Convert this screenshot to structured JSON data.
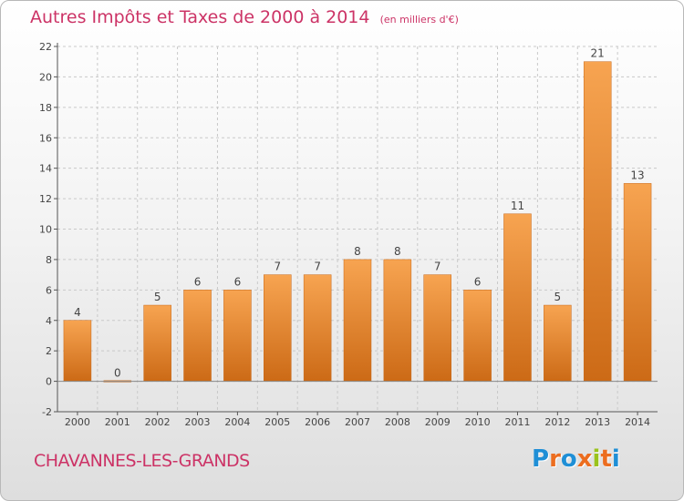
{
  "header": {
    "title": "Autres Impôts et Taxes de 2000 à 2014",
    "unit": "(en milliers d'€)"
  },
  "footer": {
    "commune": "CHAVANNES-LES-GRANDS",
    "logo_text": "Proxiti",
    "logo_colors": [
      "#1f8fd6",
      "#ec6d1f",
      "#1f8fd6",
      "#ec6d1f",
      "#9ac31c",
      "#ec6d1f",
      "#1f8fd6"
    ]
  },
  "colors": {
    "title": "#cc3366",
    "bar_light": "#f7a451",
    "bar_dark": "#cc6a16",
    "axis": "#555555",
    "grid": "#c9c9c9"
  },
  "chart_data": {
    "type": "bar",
    "title": "Autres Impôts et Taxes de 2000 à 2014",
    "subtitle": "(en milliers d'€)",
    "xlabel": "",
    "ylabel": "",
    "categories": [
      "2000",
      "2001",
      "2002",
      "2003",
      "2004",
      "2005",
      "2006",
      "2007",
      "2008",
      "2009",
      "2010",
      "2011",
      "2012",
      "2013",
      "2014"
    ],
    "values": [
      4,
      0,
      5,
      6,
      6,
      7,
      7,
      8,
      8,
      7,
      6,
      11,
      5,
      21,
      13
    ],
    "ylim": [
      -2,
      22
    ],
    "yticks": [
      -2,
      0,
      2,
      4,
      6,
      8,
      10,
      12,
      14,
      16,
      18,
      20,
      22
    ],
    "grid": true,
    "legend": "none"
  }
}
